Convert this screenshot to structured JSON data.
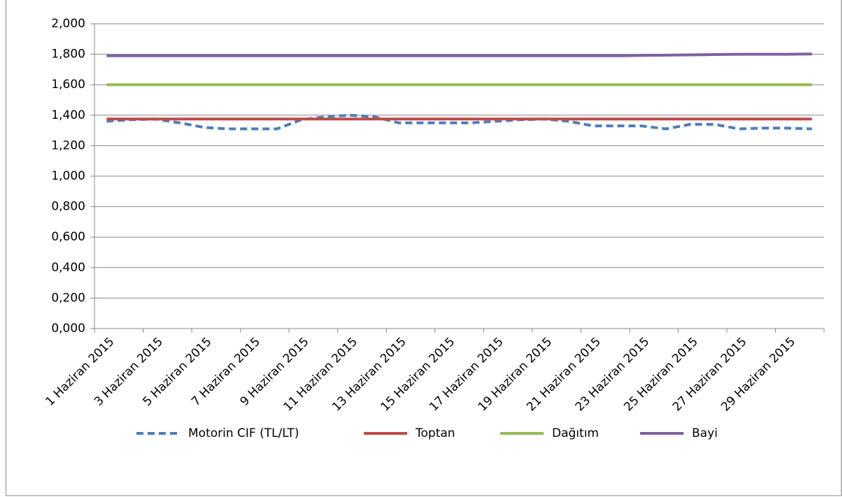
{
  "chart_data": {
    "type": "line",
    "categories": [
      "1 Haziran 2015",
      null,
      "3 Haziran 2015",
      null,
      "5 Haziran 2015",
      null,
      "7 Haziran 2015",
      null,
      "9 Haziran 2015",
      null,
      "11 Haziran 2015",
      null,
      "13 Haziran 2015",
      null,
      "15 Haziran 2015",
      null,
      "17 Haziran 2015",
      null,
      "19 Haziran 2015",
      null,
      "21 Haziran 2015",
      null,
      "23 Haziran 2015",
      null,
      "25 Haziran 2015",
      null,
      "27 Haziran 2015",
      null,
      "29 Haziran 2015",
      null
    ],
    "series": [
      {
        "name": "Motorin CIF (TL/LT)",
        "color": "#4a7ebb",
        "style": "dashed",
        "values": [
          1.36,
          1.37,
          1.375,
          1.35,
          1.32,
          1.31,
          1.31,
          1.31,
          1.37,
          1.39,
          1.4,
          1.39,
          1.35,
          1.35,
          1.35,
          1.35,
          1.36,
          1.37,
          1.375,
          1.36,
          1.33,
          1.33,
          1.33,
          1.31,
          1.34,
          1.34,
          1.31,
          1.315,
          1.315,
          1.31
        ]
      },
      {
        "name": "Toptan",
        "color": "#be4b48",
        "style": "solid",
        "values": [
          1.375,
          1.375,
          1.375,
          1.375,
          1.375,
          1.375,
          1.375,
          1.375,
          1.375,
          1.375,
          1.375,
          1.375,
          1.375,
          1.375,
          1.375,
          1.375,
          1.375,
          1.375,
          1.375,
          1.375,
          1.375,
          1.375,
          1.375,
          1.375,
          1.375,
          1.375,
          1.375,
          1.375,
          1.375,
          1.375
        ]
      },
      {
        "name": "Dağıtım",
        "color": "#98b954",
        "style": "solid",
        "values": [
          1.6,
          1.6,
          1.6,
          1.6,
          1.6,
          1.6,
          1.6,
          1.6,
          1.6,
          1.6,
          1.6,
          1.6,
          1.6,
          1.6,
          1.6,
          1.6,
          1.6,
          1.6,
          1.6,
          1.6,
          1.6,
          1.6,
          1.6,
          1.6,
          1.6,
          1.6,
          1.6,
          1.6,
          1.6,
          1.6
        ]
      },
      {
        "name": "Bayi",
        "color": "#7d60a0",
        "style": "solid",
        "values": [
          1.79,
          1.79,
          1.79,
          1.79,
          1.79,
          1.79,
          1.79,
          1.79,
          1.79,
          1.79,
          1.79,
          1.79,
          1.79,
          1.79,
          1.79,
          1.79,
          1.79,
          1.79,
          1.79,
          1.79,
          1.79,
          1.79,
          1.792,
          1.794,
          1.796,
          1.798,
          1.8,
          1.8,
          1.8,
          1.802
        ]
      }
    ],
    "ylim": [
      0,
      2
    ],
    "yticks": [
      {
        "value": 0,
        "label": "0,000"
      },
      {
        "value": 0.2,
        "label": "0,200"
      },
      {
        "value": 0.4,
        "label": "0,400"
      },
      {
        "value": 0.6,
        "label": "0,600"
      },
      {
        "value": 0.8,
        "label": "0,800"
      },
      {
        "value": 1,
        "label": "1,000"
      },
      {
        "value": 1.2,
        "label": "1,200"
      },
      {
        "value": 1.4,
        "label": "1,400"
      },
      {
        "value": 1.6,
        "label": "1,600"
      },
      {
        "value": 1.8,
        "label": "1,800"
      },
      {
        "value": 2,
        "label": "2,000"
      }
    ],
    "grid": true,
    "legend": "bottom"
  }
}
